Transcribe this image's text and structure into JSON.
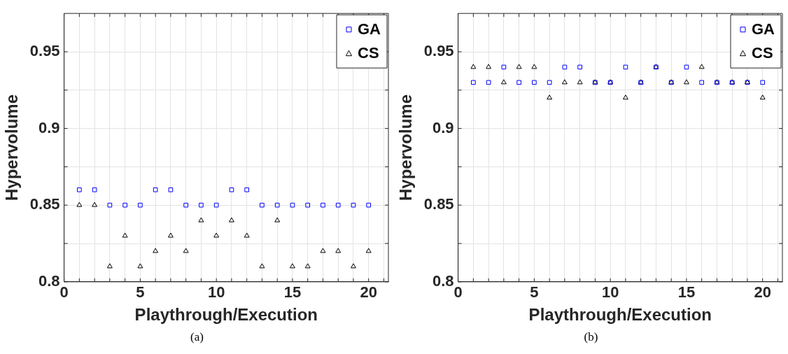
{
  "chart_data": [
    {
      "type": "scatter",
      "xlabel": "Playthrough/Execution",
      "ylabel": "Hypervolume",
      "annotations": [
        "(a)"
      ],
      "x": [
        1,
        2,
        3,
        4,
        5,
        6,
        7,
        8,
        9,
        10,
        11,
        12,
        13,
        14,
        15,
        16,
        17,
        18,
        19,
        20
      ],
      "series": [
        {
          "name": "GA",
          "color": "#0000ff",
          "marker": "square",
          "values": [
            0.86,
            0.86,
            0.85,
            0.85,
            0.85,
            0.86,
            0.86,
            0.85,
            0.85,
            0.85,
            0.86,
            0.86,
            0.85,
            0.85,
            0.85,
            0.85,
            0.85,
            0.85,
            0.85,
            0.85
          ]
        },
        {
          "name": "CS",
          "color": "#000000",
          "marker": "triangle",
          "values": [
            0.85,
            0.85,
            0.81,
            0.83,
            0.81,
            0.82,
            0.83,
            0.82,
            0.84,
            0.83,
            0.84,
            0.83,
            0.81,
            0.84,
            0.81,
            0.81,
            0.82,
            0.82,
            0.81,
            0.82
          ]
        }
      ],
      "xlim": [
        0,
        21.3
      ],
      "ylim": [
        0.8,
        0.975
      ],
      "xticks": [
        0,
        {
          "value": 1,
          "label": null
        },
        {
          "value": 2,
          "label": null
        },
        {
          "value": 3,
          "label": null
        },
        {
          "value": 4,
          "label": null
        },
        5,
        {
          "value": 6,
          "label": null
        },
        {
          "value": 7,
          "label": null
        },
        {
          "value": 8,
          "label": null
        },
        {
          "value": 9,
          "label": null
        },
        10,
        {
          "value": 11,
          "label": null
        },
        {
          "value": 12,
          "label": null
        },
        {
          "value": 13,
          "label": null
        },
        {
          "value": 14,
          "label": null
        },
        15,
        {
          "value": 16,
          "label": null
        },
        {
          "value": 17,
          "label": null
        },
        {
          "value": 18,
          "label": null
        },
        {
          "value": 19,
          "label": null
        },
        20,
        {
          "value": 21,
          "label": null
        }
      ],
      "yticks": [
        0.8,
        {
          "value": 0.825,
          "label": null
        },
        0.85,
        {
          "value": 0.875,
          "label": null
        },
        0.9,
        {
          "value": 0.925,
          "label": null
        },
        0.95
      ],
      "grid": true,
      "legend": "top right"
    },
    {
      "type": "scatter",
      "xlabel": "Playthrough/Execution",
      "ylabel": "Hypervolume",
      "annotations": [
        "(b)"
      ],
      "x": [
        1,
        2,
        3,
        4,
        5,
        6,
        7,
        8,
        9,
        10,
        11,
        12,
        13,
        14,
        15,
        16,
        17,
        18,
        19,
        20
      ],
      "series": [
        {
          "name": "GA",
          "color": "#0000ff",
          "marker": "square",
          "values": [
            0.93,
            0.93,
            0.94,
            0.93,
            0.93,
            0.93,
            0.94,
            0.94,
            0.93,
            0.93,
            0.94,
            0.93,
            0.94,
            0.93,
            0.94,
            0.93,
            0.93,
            0.93,
            0.93,
            0.93
          ]
        },
        {
          "name": "CS",
          "color": "#000000",
          "marker": "triangle",
          "values": [
            0.94,
            0.94,
            0.93,
            0.94,
            0.94,
            0.92,
            0.93,
            0.93,
            0.93,
            0.93,
            0.92,
            0.93,
            0.94,
            0.93,
            0.93,
            0.94,
            0.93,
            0.93,
            0.93,
            0.92
          ]
        }
      ],
      "xlim": [
        0,
        21.3
      ],
      "ylim": [
        0.8,
        0.975
      ],
      "xticks": [
        0,
        {
          "value": 1,
          "label": null
        },
        {
          "value": 2,
          "label": null
        },
        {
          "value": 3,
          "label": null
        },
        {
          "value": 4,
          "label": null
        },
        5,
        {
          "value": 6,
          "label": null
        },
        {
          "value": 7,
          "label": null
        },
        {
          "value": 8,
          "label": null
        },
        {
          "value": 9,
          "label": null
        },
        10,
        {
          "value": 11,
          "label": null
        },
        {
          "value": 12,
          "label": null
        },
        {
          "value": 13,
          "label": null
        },
        {
          "value": 14,
          "label": null
        },
        15,
        {
          "value": 16,
          "label": null
        },
        {
          "value": 17,
          "label": null
        },
        {
          "value": 18,
          "label": null
        },
        {
          "value": 19,
          "label": null
        },
        20,
        {
          "value": 21,
          "label": null
        }
      ],
      "yticks": [
        0.8,
        {
          "value": 0.825,
          "label": null
        },
        0.85,
        {
          "value": 0.875,
          "label": null
        },
        0.9,
        {
          "value": 0.925,
          "label": null
        },
        0.95
      ],
      "grid": true,
      "legend": "top right"
    }
  ]
}
